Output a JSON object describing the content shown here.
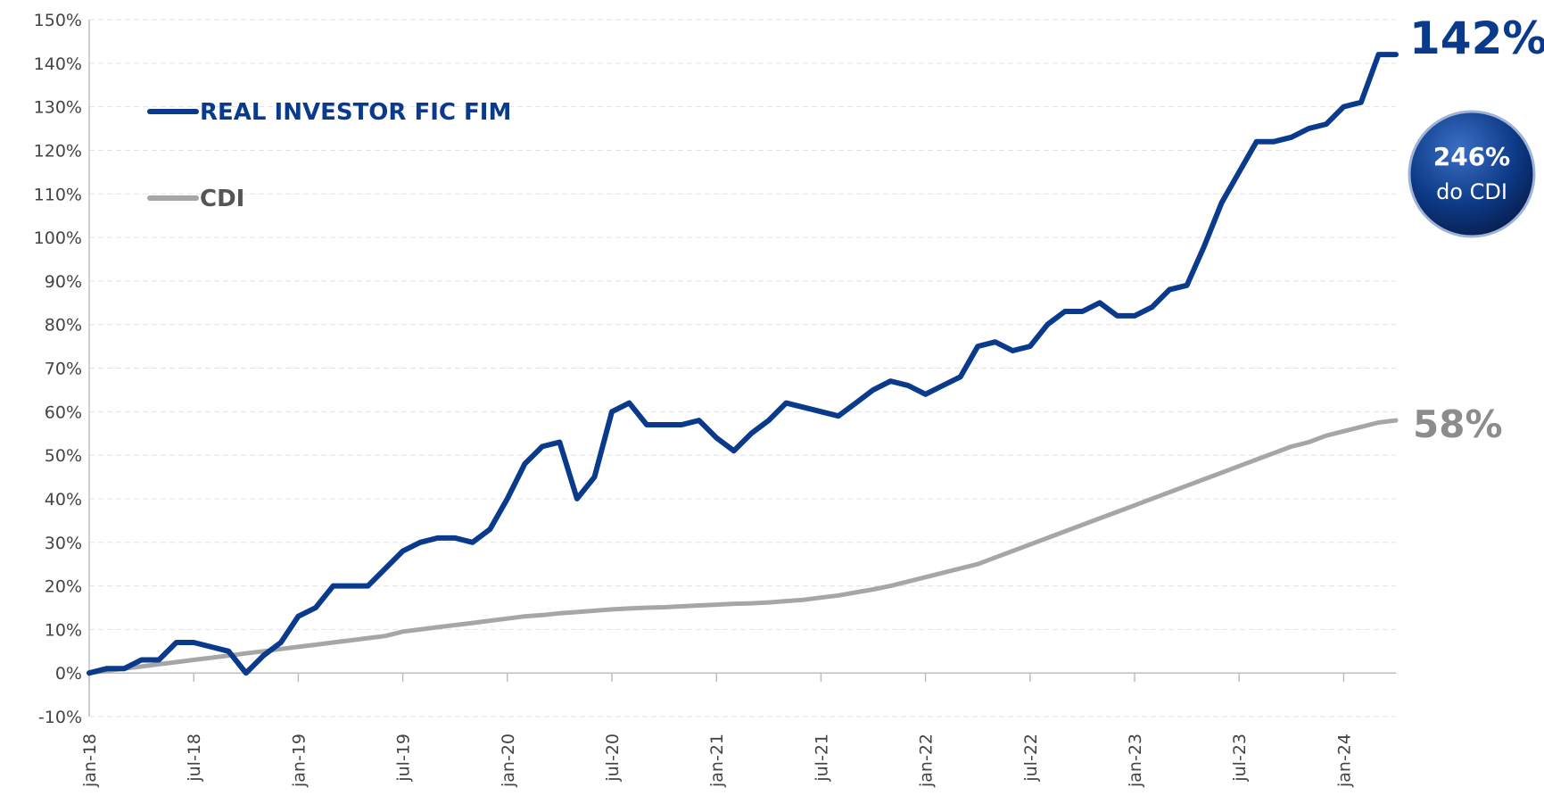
{
  "chart_data": {
    "type": "line",
    "categories": [
      "jan-18",
      null,
      null,
      null,
      null,
      null,
      "jul-18",
      null,
      null,
      null,
      null,
      null,
      "jan-19",
      null,
      null,
      null,
      null,
      null,
      "jul-19",
      null,
      null,
      null,
      null,
      null,
      "jan-20",
      null,
      null,
      null,
      null,
      null,
      "jul-20",
      null,
      null,
      null,
      null,
      null,
      "jan-21",
      null,
      null,
      null,
      null,
      null,
      "jul-21",
      null,
      null,
      null,
      null,
      null,
      "jan-22",
      null,
      null,
      null,
      null,
      null,
      "jul-22",
      null,
      null,
      null,
      null,
      null,
      "jan-23",
      null,
      null,
      null,
      null,
      null,
      "jul-23",
      null,
      null,
      null,
      null,
      null,
      "jan-24",
      null,
      null,
      null
    ],
    "series": [
      {
        "name": "REAL INVESTOR FIC FIM",
        "color": "#0a3a8c",
        "values": [
          0,
          1,
          1,
          3,
          3,
          7,
          7,
          6,
          5,
          0,
          4,
          7,
          13,
          15,
          20,
          20,
          20,
          24,
          28,
          30,
          31,
          31,
          30,
          33,
          40,
          48,
          52,
          53,
          40,
          45,
          60,
          62,
          57,
          57,
          57,
          58,
          54,
          51,
          55,
          58,
          62,
          61,
          60,
          59,
          62,
          65,
          67,
          66,
          64,
          66,
          68,
          75,
          76,
          74,
          75,
          80,
          83,
          83,
          85,
          82,
          82,
          84,
          88,
          89,
          98,
          108,
          115,
          122,
          122,
          123,
          125,
          126,
          130,
          131,
          142,
          142
        ]
      },
      {
        "name": "CDI",
        "color": "#a6a6a6",
        "values": [
          0,
          0.5,
          1,
          1.5,
          2,
          2.5,
          3,
          3.5,
          4,
          4.5,
          5,
          5.5,
          6,
          6.5,
          7,
          7.5,
          8,
          8.5,
          9.5,
          10,
          10.5,
          11,
          11.5,
          12,
          12.5,
          13,
          13.3,
          13.7,
          14,
          14.3,
          14.6,
          14.8,
          15,
          15.1,
          15.3,
          15.5,
          15.7,
          15.9,
          16,
          16.2,
          16.5,
          16.8,
          17.3,
          17.8,
          18.5,
          19.2,
          20,
          21,
          22,
          23,
          24,
          25,
          26.5,
          28,
          29.5,
          31,
          32.5,
          34,
          35.5,
          37,
          38.5,
          40,
          41.5,
          43,
          44.5,
          46,
          47.5,
          49,
          50.5,
          52,
          53,
          54.5,
          55.5,
          56.5,
          57.5,
          58
        ]
      }
    ],
    "ylim": [
      -10,
      150
    ],
    "yticks": [
      {
        "value": -10,
        "label": "-10%"
      },
      {
        "value": 0,
        "label": "0%"
      },
      {
        "value": 10,
        "label": "10%"
      },
      {
        "value": 20,
        "label": "20%"
      },
      {
        "value": 30,
        "label": "30%"
      },
      {
        "value": 40,
        "label": "40%"
      },
      {
        "value": 50,
        "label": "50%"
      },
      {
        "value": 60,
        "label": "60%"
      },
      {
        "value": 70,
        "label": "70%"
      },
      {
        "value": 80,
        "label": "80%"
      },
      {
        "value": 90,
        "label": "90%"
      },
      {
        "value": 100,
        "label": "100%"
      },
      {
        "value": 110,
        "label": "110%"
      },
      {
        "value": 120,
        "label": "120%"
      },
      {
        "value": 130,
        "label": "130%"
      },
      {
        "value": 140,
        "label": "140%"
      },
      {
        "value": 150,
        "label": "150%"
      }
    ],
    "grid": true,
    "legend": "top-left",
    "annotations": {
      "fund_end": "142%",
      "cdi_end": "58%",
      "ratio": "246%",
      "ratio_note": "do CDI"
    }
  }
}
